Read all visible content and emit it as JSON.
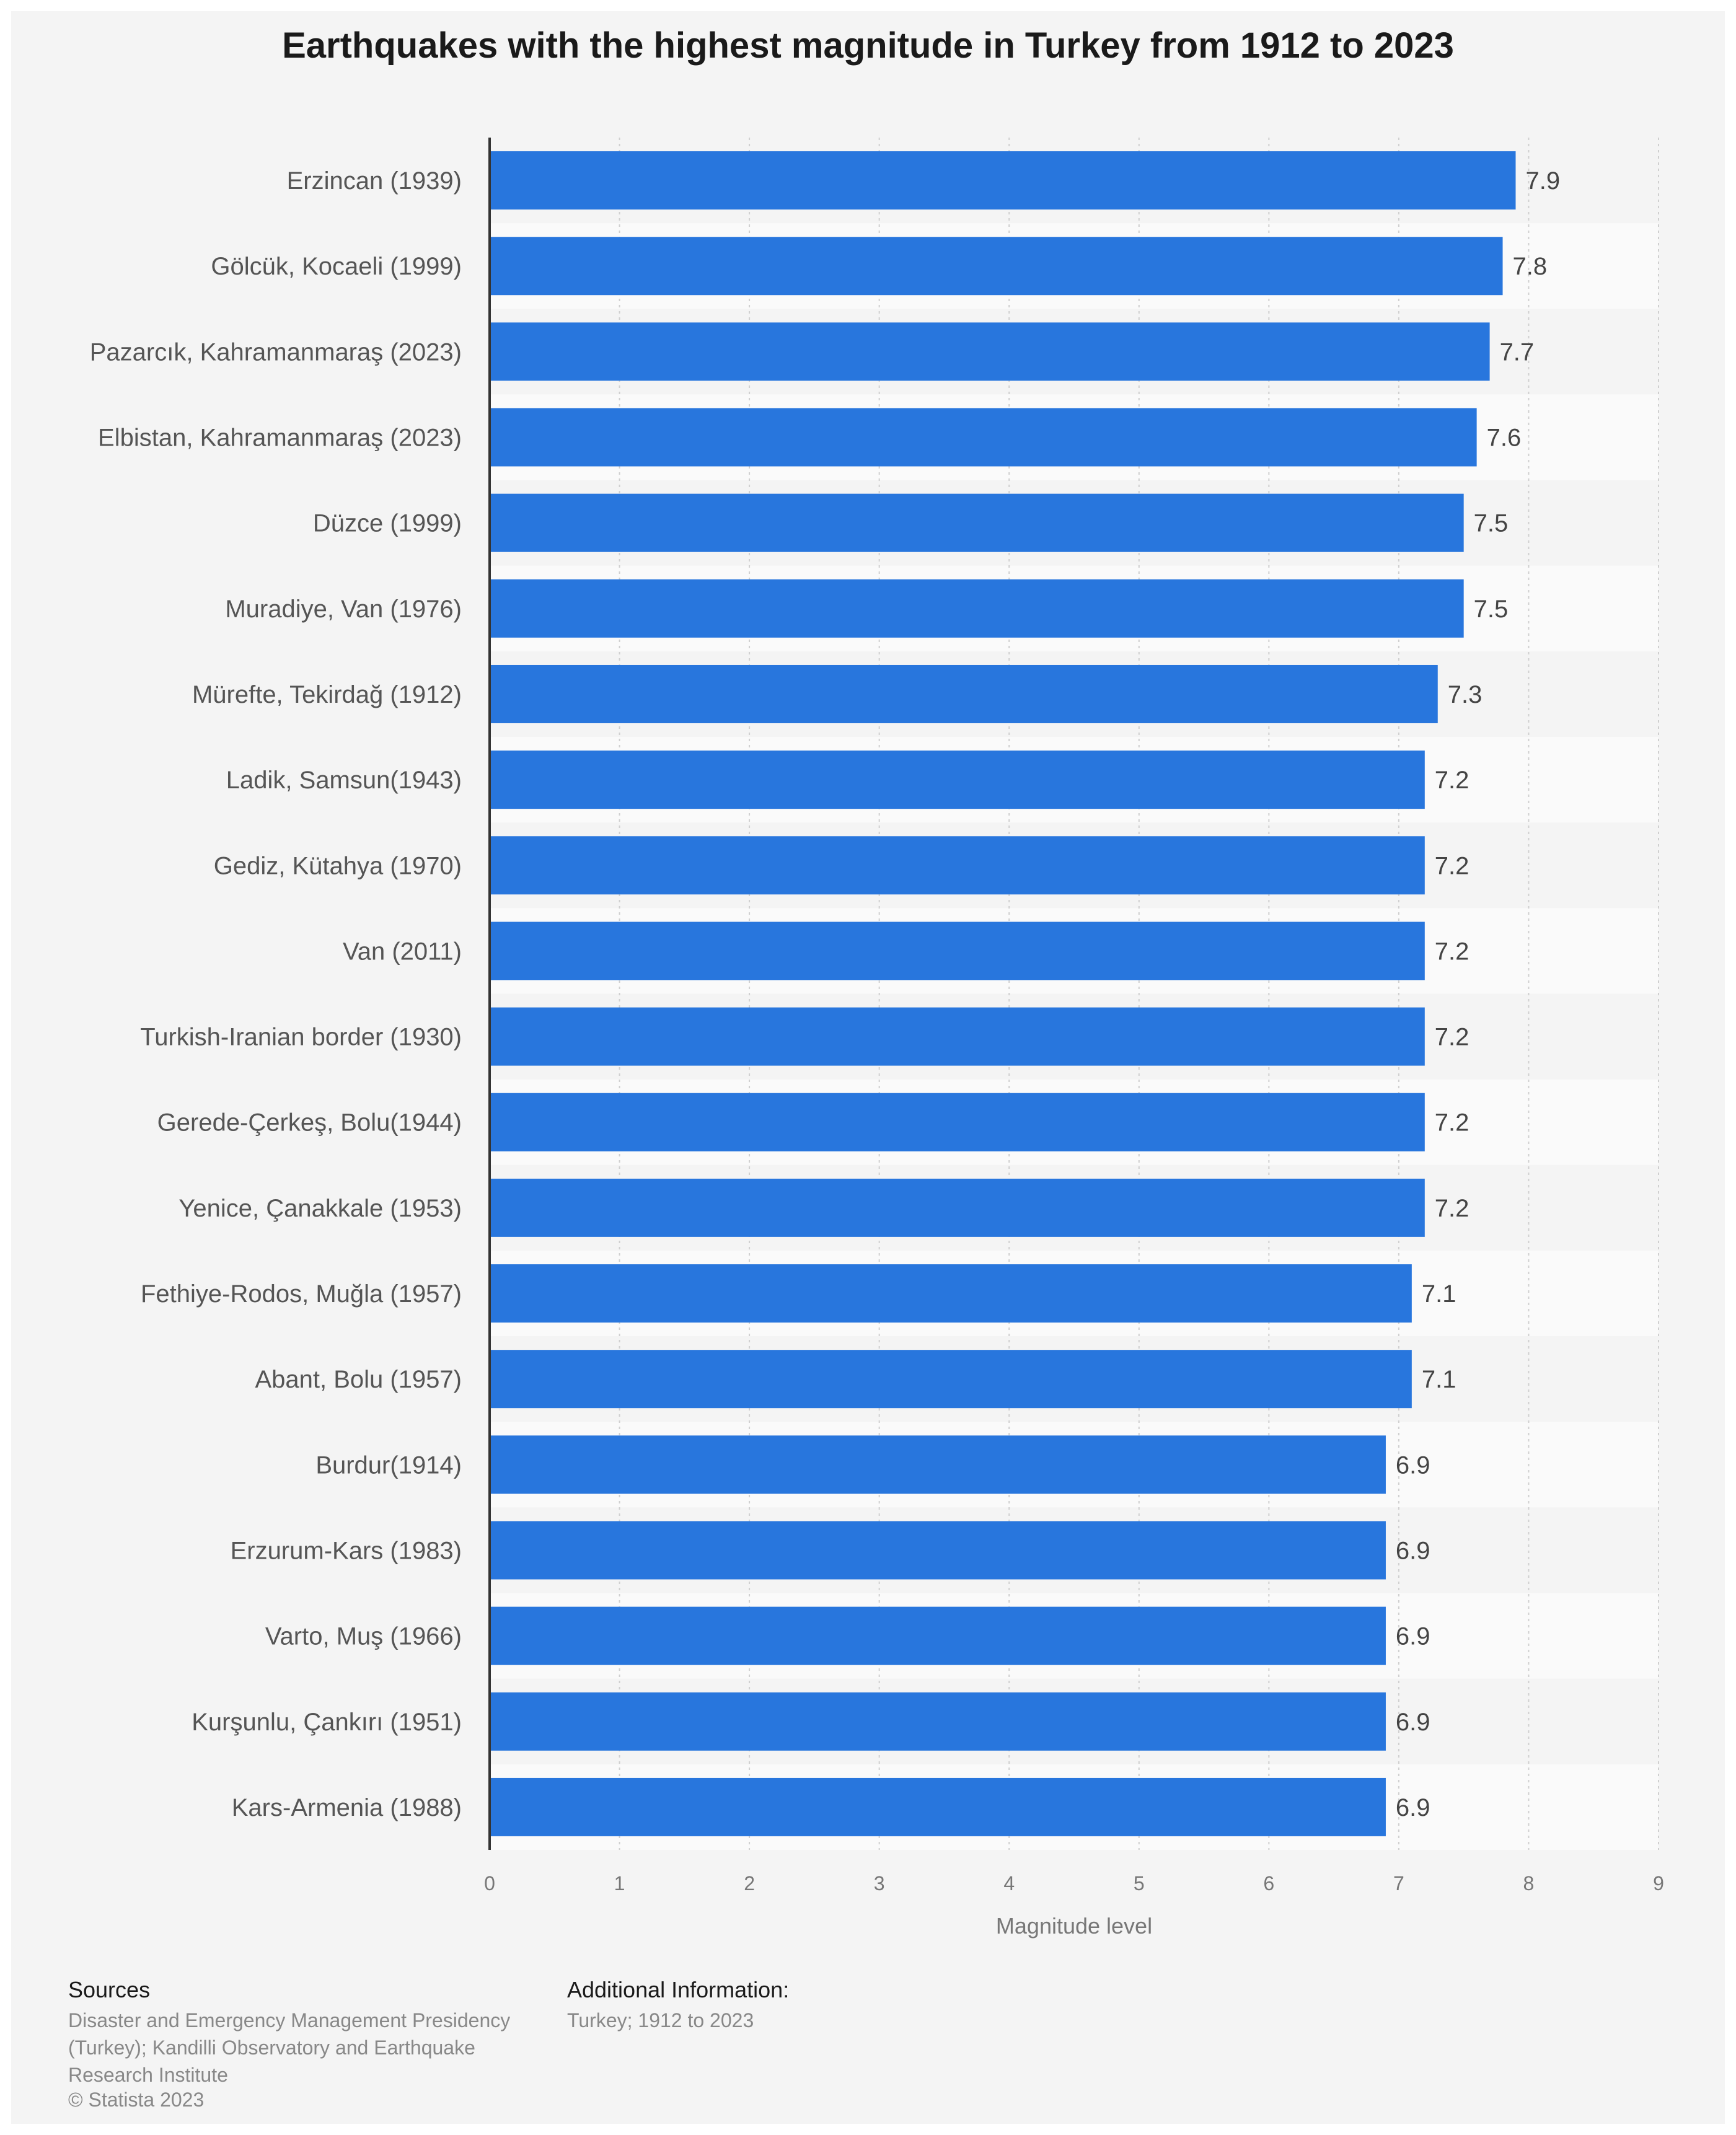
{
  "chart_data": {
    "type": "bar",
    "orientation": "horizontal",
    "title": "Earthquakes with the highest magnitude in Turkey from 1912 to 2023",
    "xlabel": "Magnitude level",
    "ylabel": "",
    "xlim": [
      0,
      9
    ],
    "xticks": [
      "0",
      "1",
      "2",
      "3",
      "4",
      "5",
      "6",
      "7",
      "8",
      "9"
    ],
    "categories": [
      "Erzincan (1939)",
      "Gölcük, Kocaeli (1999)",
      "Pazarcık, Kahramanmaraş (2023)",
      "Elbistan, Kahramanmaraş (2023)",
      "Düzce (1999)",
      "Muradiye, Van (1976)",
      "Mürefte, Tekirdağ (1912)",
      "Ladik, Samsun(1943)",
      "Gediz, Kütahya (1970)",
      "Van (2011)",
      "Turkish-Iranian border (1930)",
      "Gerede-Çerkeş, Bolu(1944)",
      "Yenice, Çanakkale (1953)",
      "Fethiye-Rodos, Muğla (1957)",
      "Abant, Bolu (1957)",
      "Burdur(1914)",
      "Erzurum-Kars (1983)",
      "Varto, Muş (1966)",
      "Kurşunlu, Çankırı (1951)",
      "Kars-Armenia (1988)"
    ],
    "values": [
      7.9,
      7.8,
      7.7,
      7.6,
      7.5,
      7.5,
      7.3,
      7.2,
      7.2,
      7.2,
      7.2,
      7.2,
      7.2,
      7.1,
      7.1,
      6.9,
      6.9,
      6.9,
      6.9,
      6.9
    ],
    "value_labels": [
      "7.9",
      "7.8",
      "7.7",
      "7.6",
      "7.5",
      "7.5",
      "7.3",
      "7.2",
      "7.2",
      "7.2",
      "7.2",
      "7.2",
      "7.2",
      "7.1",
      "7.1",
      "6.9",
      "6.9",
      "6.9",
      "6.9",
      "6.9"
    ],
    "grid": true,
    "legend": "none",
    "bar_color": "#2876dd",
    "alt_row_color": "#fafafa"
  },
  "footer": {
    "sources_heading": "Sources",
    "sources_text": "Disaster and Emergency Management Presidency (Turkey); Kandilli Observatory and Earthquake Research Institute",
    "copyright": "© Statista 2023",
    "additional_heading": "Additional Information:",
    "additional_text": "Turkey; 1912 to 2023"
  }
}
